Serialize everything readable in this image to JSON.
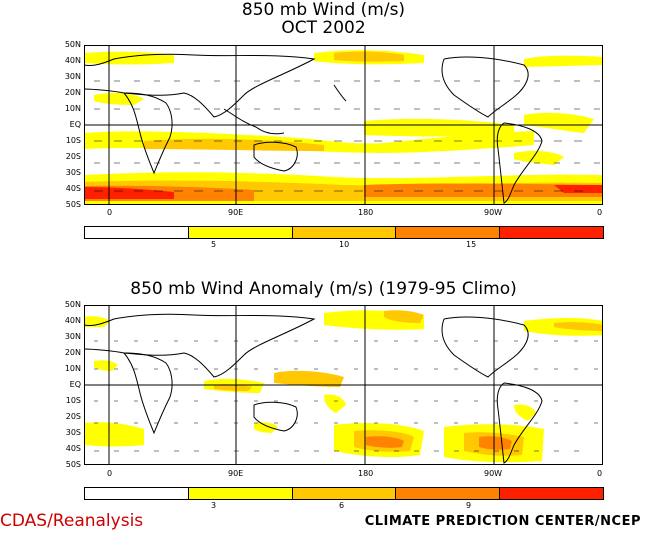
{
  "panel1": {
    "title_line1": "850 mb Wind (m/s)",
    "title_line2": "OCT 2002",
    "colorbar_labels": [
      "5",
      "10",
      "15"
    ],
    "colorbar_colors": [
      "#ffffff",
      "#ffff00",
      "#ffc800",
      "#ff8200",
      "#ff2000"
    ]
  },
  "panel2": {
    "title": "850 mb Wind Anomaly (m/s) (1979-95 Climo)",
    "colorbar_labels": [
      "3",
      "6",
      "9"
    ],
    "colorbar_colors": [
      "#ffffff",
      "#ffff00",
      "#ffc800",
      "#ff8200",
      "#ff2000"
    ]
  },
  "lat_labels": [
    "50N",
    "40N",
    "30N",
    "20N",
    "10N",
    "EQ",
    "10S",
    "20S",
    "30S",
    "40S",
    "50S"
  ],
  "lon_labels": [
    "0",
    "90E",
    "180",
    "90W",
    "0"
  ],
  "footer": {
    "left": "CDAS/Reanalysis",
    "right": "CLIMATE PREDICTION CENTER/NCEP"
  },
  "colors": {
    "yellow": "#ffff00",
    "light_orange": "#ffc800",
    "orange": "#ff8200",
    "red": "#ff2000"
  }
}
